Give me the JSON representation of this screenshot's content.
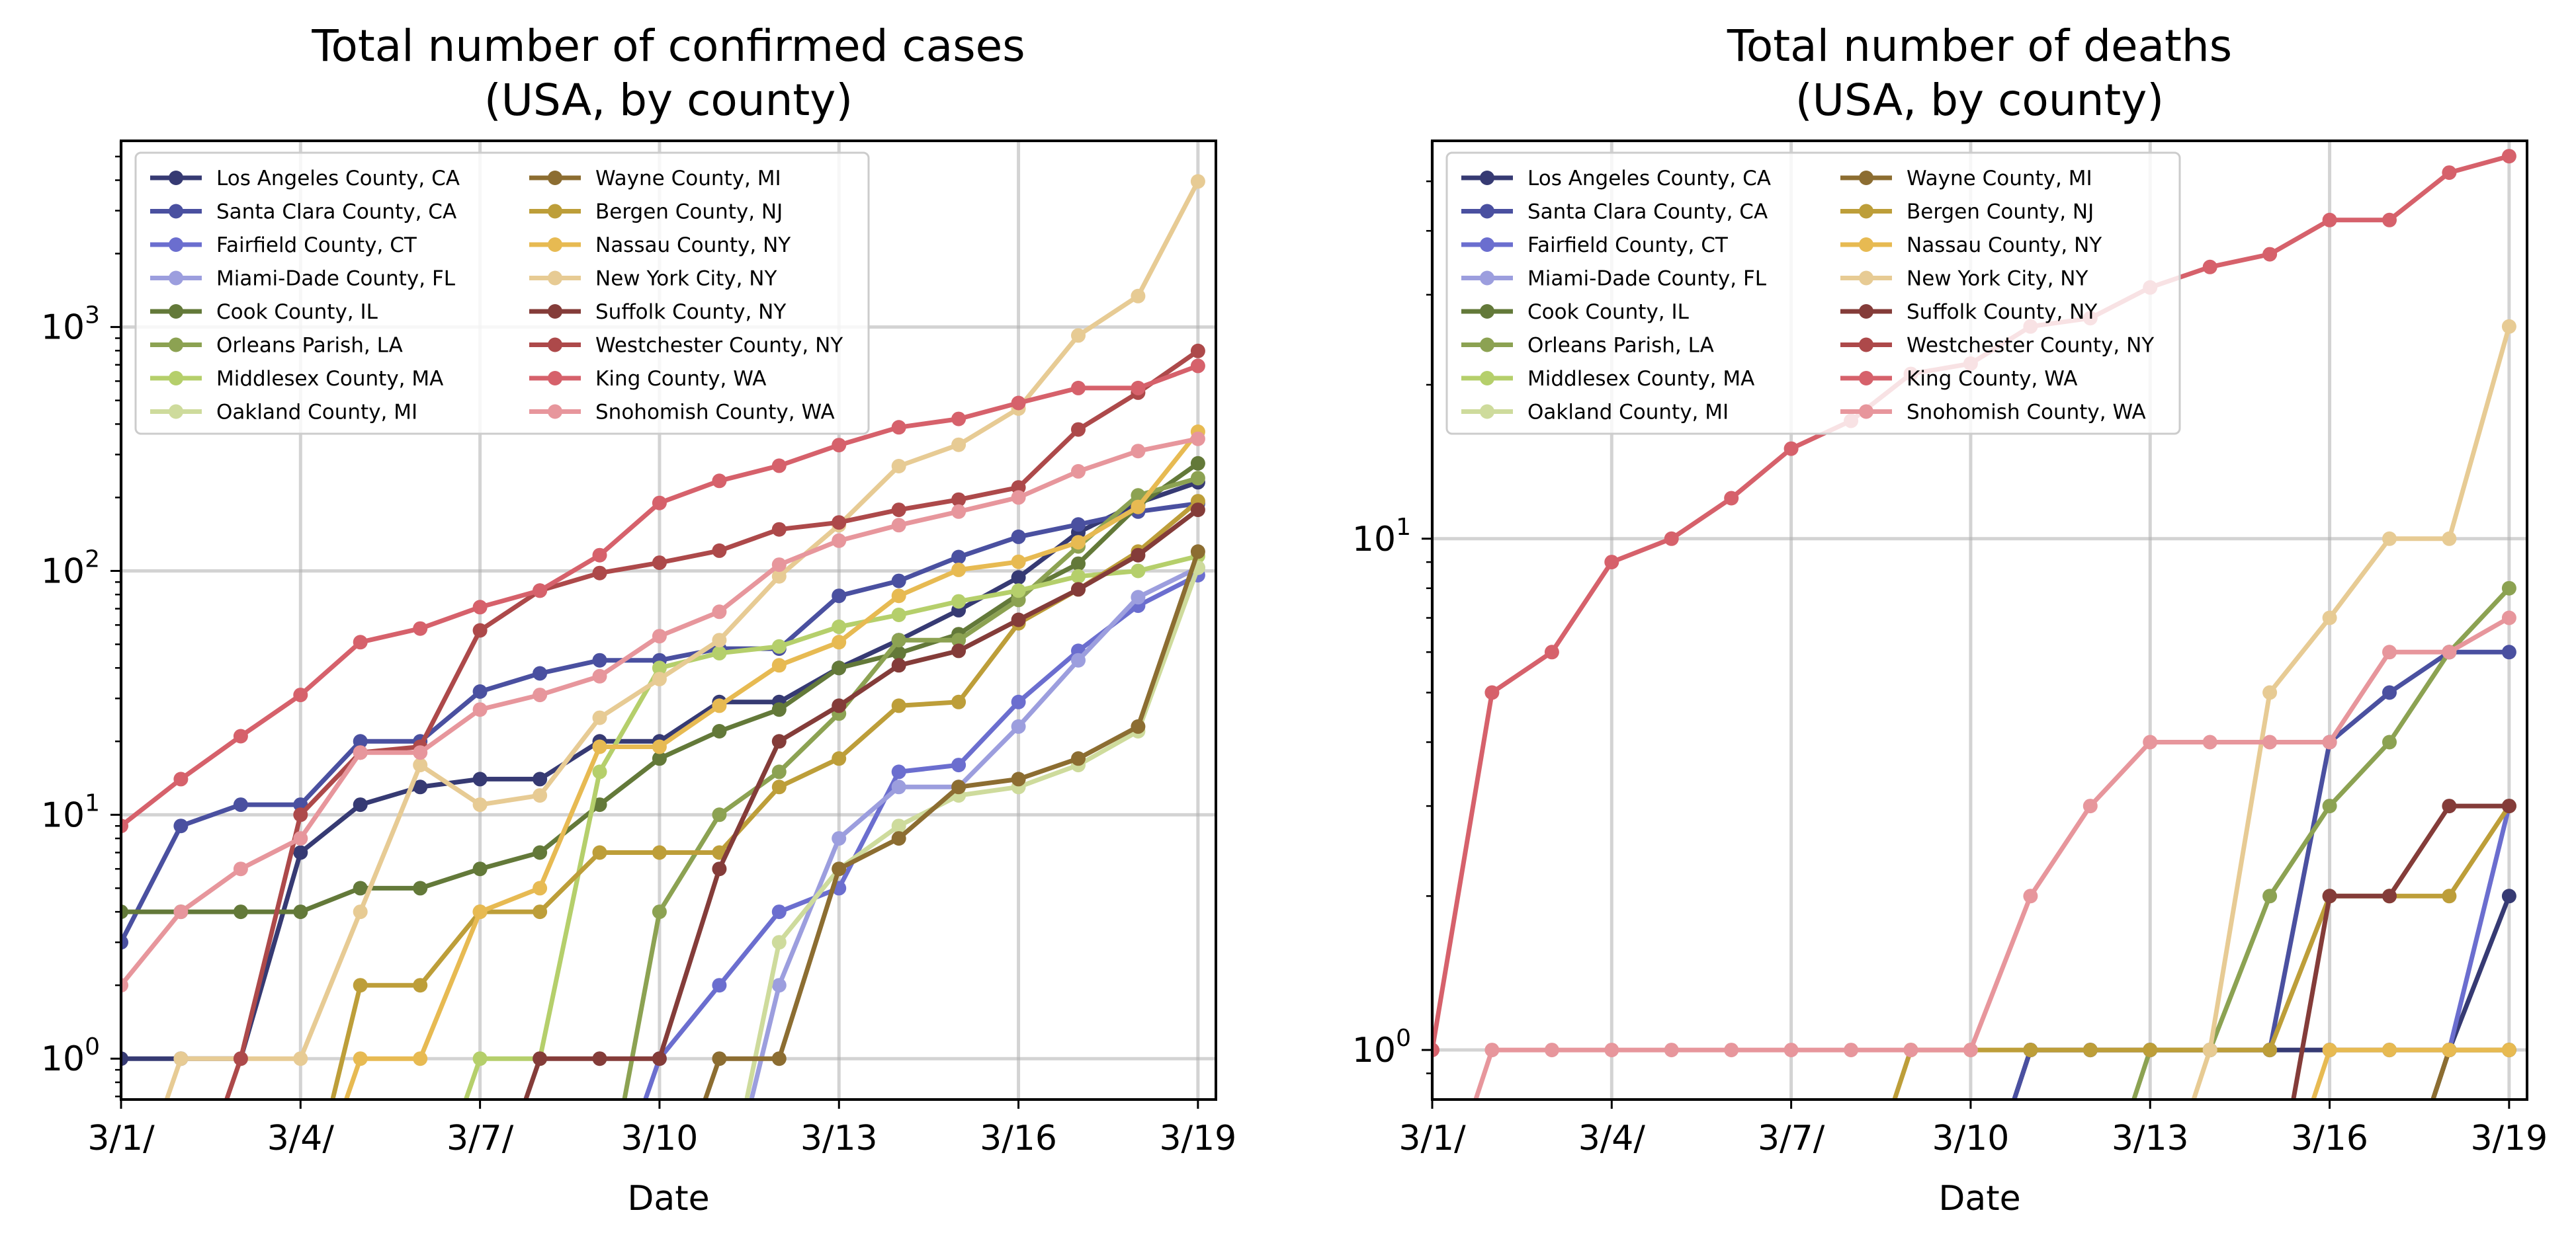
{
  "chart_data": [
    {
      "type": "line",
      "title_line1": "Total number of confirmed cases",
      "title_line2": "(USA, by county)",
      "xlabel": "Date",
      "ylabel": "",
      "yscale": "log",
      "ylim": [
        0.68,
        5800
      ],
      "xlim": [
        0,
        18.3
      ],
      "grid": true,
      "legend_position": "upper-left, two columns",
      "x_ticks": [
        "3/1/",
        "3/4/",
        "3/7/",
        "3/10",
        "3/13",
        "3/16",
        "3/19"
      ],
      "y_ticks": [
        {
          "base": "10",
          "exp": "0",
          "value": 1
        },
        {
          "base": "10",
          "exp": "1",
          "value": 10
        },
        {
          "base": "10",
          "exp": "2",
          "value": 100
        },
        {
          "base": "10",
          "exp": "3",
          "value": 1000
        }
      ],
      "x": [
        "3/1",
        "3/2",
        "3/3",
        "3/4",
        "3/5",
        "3/6",
        "3/7",
        "3/8",
        "3/9",
        "3/10",
        "3/11",
        "3/12",
        "3/13",
        "3/14",
        "3/15",
        "3/16",
        "3/17",
        "3/18",
        "3/19"
      ],
      "series": [
        {
          "name": "Los Angeles County, CA",
          "color": "#363a73",
          "values": [
            1,
            1,
            1,
            7,
            11,
            13,
            14,
            14,
            20,
            20,
            29,
            29,
            40,
            52,
            69,
            94,
            144,
            190,
            231
          ]
        },
        {
          "name": "Santa Clara County, CA",
          "color": "#4a50a0",
          "values": [
            3,
            9,
            11,
            11,
            20,
            20,
            32,
            38,
            43,
            43,
            48,
            48,
            79,
            91,
            114,
            138,
            155,
            175,
            189
          ]
        },
        {
          "name": "Fairfield County, CT",
          "color": "#6b6ecf",
          "values": [
            null,
            null,
            null,
            null,
            null,
            null,
            null,
            null,
            null,
            1,
            2,
            4,
            5,
            15,
            16,
            29,
            47,
            72,
            96
          ]
        },
        {
          "name": "Miami-Dade County, FL",
          "color": "#9c9ede",
          "values": [
            null,
            null,
            null,
            null,
            null,
            null,
            null,
            null,
            null,
            null,
            null,
            2,
            8,
            13,
            13,
            23,
            43,
            78,
            103
          ]
        },
        {
          "name": "Cook County, IL",
          "color": "#637939",
          "values": [
            4,
            4,
            4,
            4,
            5,
            5,
            6,
            7,
            11,
            17,
            22,
            27,
            40,
            46,
            55,
            80,
            107,
            185,
            276
          ]
        },
        {
          "name": "Orleans Parish, LA",
          "color": "#8ca252",
          "values": [
            null,
            null,
            null,
            null,
            null,
            null,
            null,
            null,
            null,
            4,
            10,
            15,
            26,
            52,
            52,
            76,
            126,
            204,
            240
          ]
        },
        {
          "name": "Middlesex County, MA",
          "color": "#b5cf6b",
          "values": [
            null,
            null,
            null,
            null,
            null,
            null,
            1,
            1,
            15,
            40,
            46,
            49,
            59,
            66,
            75,
            83,
            95,
            100,
            115
          ]
        },
        {
          "name": "Oakland County, MI",
          "color": "#cedb9c",
          "values": [
            null,
            null,
            null,
            null,
            null,
            null,
            null,
            null,
            null,
            null,
            null,
            3,
            6,
            9,
            12,
            13,
            16,
            22,
            103
          ]
        },
        {
          "name": "Wayne County, MI",
          "color": "#8c6d31",
          "values": [
            null,
            null,
            null,
            null,
            null,
            null,
            null,
            null,
            null,
            null,
            1,
            1,
            6,
            8,
            13,
            14,
            17,
            23,
            120
          ]
        },
        {
          "name": "Bergen County, NJ",
          "color": "#bd9e39",
          "values": [
            null,
            null,
            null,
            null,
            2,
            2,
            4,
            4,
            7,
            7,
            7,
            13,
            17,
            28,
            29,
            61,
            84,
            120,
            193
          ]
        },
        {
          "name": "Nassau County, NY",
          "color": "#e7ba52",
          "values": [
            null,
            null,
            null,
            null,
            1,
            1,
            4,
            5,
            19,
            19,
            28,
            41,
            51,
            79,
            101,
            109,
            131,
            183,
            372
          ]
        },
        {
          "name": "New York City, NY",
          "color": "#e7cb94",
          "values": [
            null,
            1,
            1,
            1,
            4,
            16,
            11,
            12,
            25,
            36,
            52,
            95,
            154,
            269,
            329,
            463,
            923,
            1339,
            3954
          ]
        },
        {
          "name": "Suffolk County, NY",
          "color": "#843c39",
          "values": [
            null,
            null,
            null,
            null,
            null,
            null,
            null,
            1,
            1,
            1,
            6,
            20,
            28,
            41,
            47,
            63,
            84,
            116,
            178
          ]
        },
        {
          "name": "Westchester County, NY",
          "color": "#ad494a",
          "values": [
            null,
            null,
            1,
            10,
            18,
            19,
            57,
            83,
            98,
            108,
            121,
            148,
            158,
            178,
            196,
            220,
            380,
            538,
            798
          ]
        },
        {
          "name": "King County, WA",
          "color": "#d6616b",
          "values": [
            9,
            14,
            21,
            31,
            51,
            58,
            71,
            83,
            116,
            190,
            234,
            270,
            328,
            388,
            420,
            488,
            562,
            562,
            693
          ]
        },
        {
          "name": "Snohomish County, WA",
          "color": "#e7969c",
          "values": [
            2,
            4,
            6,
            8,
            18,
            18,
            27,
            31,
            37,
            54,
            68,
            106,
            133,
            154,
            175,
            200,
            256,
            310,
            348
          ]
        }
      ]
    },
    {
      "type": "line",
      "title_line1": "Total number of deaths",
      "title_line2": "(USA, by county)",
      "xlabel": "Date",
      "ylabel": "",
      "yscale": "log",
      "ylim": [
        0.8,
        60
      ],
      "xlim": [
        0,
        18.3
      ],
      "grid": true,
      "legend_position": "upper-left, two columns",
      "x_ticks": [
        "3/1/",
        "3/4/",
        "3/7/",
        "3/10",
        "3/13",
        "3/16",
        "3/19"
      ],
      "y_ticks": [
        {
          "base": "10",
          "exp": "0",
          "value": 1
        },
        {
          "base": "10",
          "exp": "1",
          "value": 10
        }
      ],
      "x": [
        "3/1",
        "3/2",
        "3/3",
        "3/4",
        "3/5",
        "3/6",
        "3/7",
        "3/8",
        "3/9",
        "3/10",
        "3/11",
        "3/12",
        "3/13",
        "3/14",
        "3/15",
        "3/16",
        "3/17",
        "3/18",
        "3/19"
      ],
      "series": [
        {
          "name": "Los Angeles County, CA",
          "color": "#363a73",
          "values": [
            null,
            null,
            null,
            null,
            null,
            null,
            null,
            null,
            null,
            null,
            1,
            1,
            1,
            1,
            1,
            1,
            1,
            1,
            2
          ]
        },
        {
          "name": "Santa Clara County, CA",
          "color": "#4a50a0",
          "values": [
            null,
            null,
            null,
            null,
            null,
            null,
            null,
            null,
            null,
            null,
            1,
            1,
            1,
            1,
            1,
            4,
            5,
            6,
            6
          ]
        },
        {
          "name": "Fairfield County, CT",
          "color": "#6b6ecf",
          "values": [
            null,
            null,
            null,
            null,
            null,
            null,
            null,
            null,
            null,
            null,
            null,
            null,
            null,
            null,
            null,
            null,
            null,
            1,
            3
          ]
        },
        {
          "name": "Miami-Dade County, FL",
          "color": "#9c9ede",
          "values": [
            null,
            null,
            null,
            null,
            null,
            null,
            null,
            null,
            null,
            null,
            null,
            null,
            null,
            null,
            null,
            null,
            null,
            null,
            null
          ]
        },
        {
          "name": "Cook County, IL",
          "color": "#637939",
          "values": [
            null,
            null,
            null,
            null,
            null,
            null,
            null,
            null,
            null,
            null,
            null,
            null,
            null,
            null,
            null,
            null,
            null,
            1,
            1
          ]
        },
        {
          "name": "Orleans Parish, LA",
          "color": "#8ca252",
          "values": [
            null,
            null,
            null,
            null,
            null,
            null,
            null,
            null,
            null,
            null,
            null,
            null,
            1,
            1,
            2,
            3,
            4,
            6,
            8
          ]
        },
        {
          "name": "Middlesex County, MA",
          "color": "#b5cf6b",
          "values": [
            null,
            null,
            null,
            null,
            null,
            null,
            null,
            null,
            null,
            null,
            null,
            null,
            null,
            null,
            null,
            null,
            null,
            null,
            null
          ]
        },
        {
          "name": "Oakland County, MI",
          "color": "#cedb9c",
          "values": [
            null,
            null,
            null,
            null,
            null,
            null,
            null,
            null,
            null,
            null,
            null,
            null,
            null,
            null,
            null,
            null,
            null,
            null,
            null
          ]
        },
        {
          "name": "Wayne County, MI",
          "color": "#8c6d31",
          "values": [
            null,
            null,
            null,
            null,
            null,
            null,
            null,
            null,
            null,
            null,
            null,
            null,
            null,
            null,
            null,
            null,
            null,
            1,
            1
          ]
        },
        {
          "name": "Bergen County, NJ",
          "color": "#bd9e39",
          "values": [
            null,
            null,
            null,
            null,
            null,
            null,
            null,
            null,
            1,
            1,
            1,
            1,
            1,
            1,
            1,
            2,
            2,
            2,
            3
          ]
        },
        {
          "name": "Nassau County, NY",
          "color": "#e7ba52",
          "values": [
            null,
            null,
            null,
            null,
            null,
            null,
            null,
            null,
            null,
            null,
            null,
            null,
            null,
            null,
            null,
            1,
            1,
            1,
            1
          ]
        },
        {
          "name": "New York City, NY",
          "color": "#e7cb94",
          "values": [
            null,
            null,
            null,
            null,
            null,
            null,
            null,
            null,
            null,
            null,
            null,
            null,
            null,
            1,
            5,
            7,
            10,
            10,
            26
          ]
        },
        {
          "name": "Suffolk County, NY",
          "color": "#843c39",
          "values": [
            null,
            null,
            null,
            null,
            null,
            null,
            null,
            null,
            null,
            null,
            null,
            null,
            null,
            null,
            null,
            2,
            2,
            3,
            3
          ]
        },
        {
          "name": "Westchester County, NY",
          "color": "#ad494a",
          "values": [
            null,
            null,
            null,
            null,
            null,
            null,
            null,
            null,
            null,
            null,
            null,
            null,
            null,
            null,
            null,
            null,
            null,
            null,
            null
          ]
        },
        {
          "name": "King County, WA",
          "color": "#d6616b",
          "values": [
            1,
            5,
            6,
            9,
            10,
            12,
            15,
            17,
            21,
            22,
            26,
            27,
            31,
            34,
            36,
            42,
            42,
            52,
            56
          ]
        },
        {
          "name": "Snohomish County, WA",
          "color": "#e7969c",
          "values": [
            null,
            1,
            1,
            1,
            1,
            1,
            1,
            1,
            1,
            1,
            2,
            3,
            4,
            4,
            4,
            4,
            6,
            6,
            7
          ]
        }
      ]
    }
  ]
}
